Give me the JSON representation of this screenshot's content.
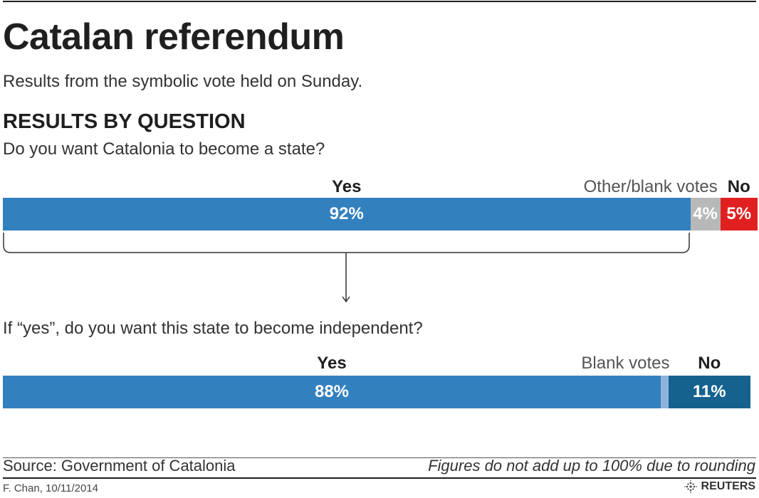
{
  "header": {
    "title": "Catalan referendum",
    "subtitle": "Results from the symbolic vote held on Sunday.",
    "section": "RESULTS BY QUESTION"
  },
  "footer": {
    "source": "Source: Government of Catalonia",
    "note": "Figures do not add up to 100% due to rounding",
    "credit": "F. Chan, 10/11/2014",
    "brand": "REUTERS"
  },
  "colors": {
    "yes": "#3380bf",
    "other": "#b8b8b8",
    "no_q1": "#e02020",
    "blank_q2": "#8fb3df",
    "no_q2": "#15628f"
  },
  "chart_data": [
    {
      "type": "bar",
      "orientation": "horizontal-stacked",
      "question": "Do you want Catalonia to become a state?",
      "categories": [
        "Yes",
        "Other/blank votes",
        "No"
      ],
      "values": [
        92,
        4,
        5
      ],
      "value_labels": [
        "92%",
        "4%",
        "5%"
      ],
      "unit": "%"
    },
    {
      "type": "bar",
      "orientation": "horizontal-stacked",
      "question": "If “yes”, do you want this state to become independent?",
      "categories": [
        "Yes",
        "Blank votes",
        "No"
      ],
      "values": [
        88,
        1,
        11
      ],
      "value_labels": [
        "88%",
        "",
        "11%"
      ],
      "unit": "%"
    }
  ]
}
